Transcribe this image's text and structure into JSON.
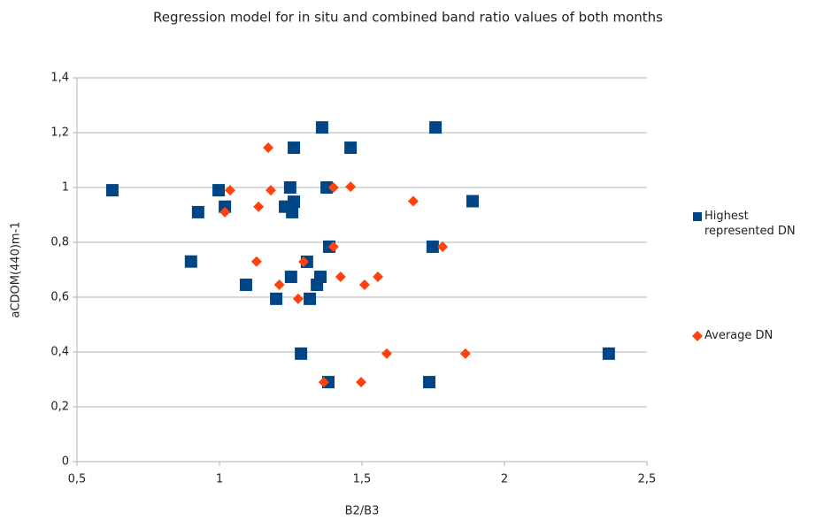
{
  "chart_data": {
    "type": "scatter",
    "title": "Regression model for in situ and combined band ratio values of both months",
    "x_label": "B2/B3",
    "y_label": "aCDOM(440)m-1",
    "xlim": [
      0.5,
      2.5
    ],
    "xticks": [
      {
        "value": 0.5,
        "label": "0,5"
      },
      1,
      {
        "value": 1.5,
        "label": "1,5"
      },
      2,
      {
        "value": 2.5,
        "label": "2,5"
      }
    ],
    "ylim": [
      0,
      1.4
    ],
    "yticks": [
      0,
      {
        "value": 0.2,
        "label": "0,2"
      },
      {
        "value": 0.4,
        "label": "0,4"
      },
      {
        "value": 0.6,
        "label": "0,6"
      },
      {
        "value": 0.8,
        "label": "0,8"
      },
      1,
      {
        "value": 1.2,
        "label": "1,2"
      },
      {
        "value": 1.4,
        "label": "1,4"
      }
    ],
    "grid": true,
    "legend": "right",
    "series": [
      {
        "name": "Highest represented DN",
        "color": "#004586",
        "marker": "square",
        "x": [
          0.624,
          0.9,
          0.925,
          0.997,
          1.019,
          1.093,
          1.199,
          1.23,
          1.248,
          1.251,
          1.255,
          1.261,
          1.261,
          1.286,
          1.307,
          1.317,
          1.342,
          1.354,
          1.36,
          1.376,
          1.382,
          1.385,
          1.46,
          1.736,
          1.748,
          1.758,
          1.888,
          2.366
        ],
        "values": [
          0.99,
          0.73,
          0.91,
          0.99,
          0.93,
          0.645,
          0.594,
          0.93,
          1.0,
          0.674,
          0.91,
          0.948,
          1.145,
          0.394,
          0.729,
          0.594,
          0.645,
          0.674,
          1.219,
          1.0,
          0.29,
          0.784,
          1.145,
          0.29,
          0.784,
          1.219,
          0.95,
          0.394
        ]
      },
      {
        "name": "Average DN",
        "color": "#ff420e",
        "marker": "diamond",
        "x": [
          1.171,
          1.18,
          1.037,
          1.019,
          1.137,
          1.13,
          1.21,
          1.276,
          1.295,
          1.366,
          1.4,
          1.4,
          1.425,
          1.46,
          1.509,
          1.556,
          1.587,
          1.497,
          1.68,
          1.783,
          1.863
        ],
        "values": [
          1.145,
          0.99,
          0.99,
          0.91,
          0.93,
          0.73,
          0.645,
          0.594,
          0.729,
          0.29,
          1.0,
          0.784,
          0.674,
          1.003,
          0.645,
          0.674,
          0.394,
          0.29,
          0.95,
          0.784,
          0.394
        ]
      }
    ]
  }
}
